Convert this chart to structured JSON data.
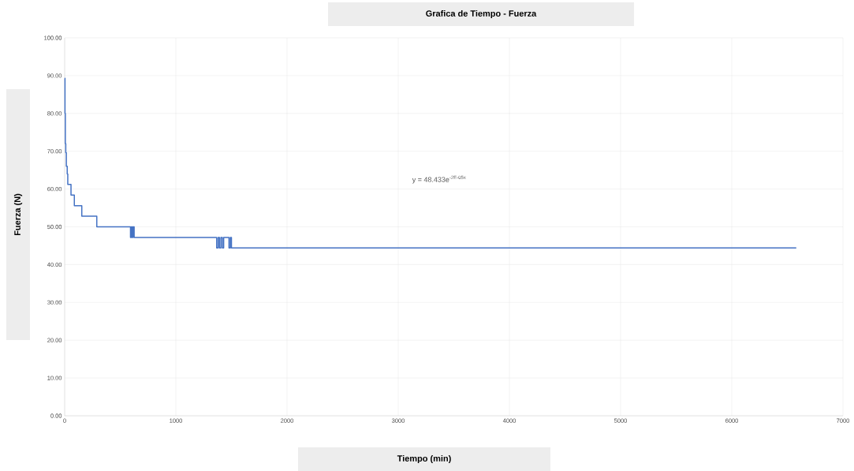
{
  "chart_data": {
    "type": "step",
    "title": "Grafica de Tiempo - Fuerza",
    "xlabel": "Tiempo (min)",
    "ylabel": "Fuerza (N)",
    "annotations": [
      "y = 48.433e$^{-2E-05x}$"
    ],
    "x": [
      0,
      3,
      6,
      10,
      15,
      23,
      28,
      57,
      87,
      154,
      289,
      592,
      600,
      608,
      615,
      625,
      1367,
      1380,
      1392,
      1405,
      1418,
      1430,
      1478,
      1490,
      1500,
      6580
    ],
    "values": [
      89.3,
      80,
      72,
      69.6,
      66,
      64,
      61.2,
      58.4,
      55.6,
      52.8,
      50.0,
      47.2,
      50.0,
      47.2,
      50.0,
      47.2,
      44.4,
      47.2,
      44.4,
      47.2,
      44.4,
      47.2,
      44.4,
      47.2,
      44.4,
      44.4
    ],
    "color": "#4472c4",
    "xlim": [
      0,
      7000
    ],
    "xticks": [
      0,
      1000,
      2000,
      3000,
      4000,
      5000,
      6000,
      7000
    ],
    "ylim": [
      0,
      100
    ],
    "yticks": [
      {
        "value": 0,
        "label": "0.00"
      },
      {
        "value": 10,
        "label": "10.00"
      },
      {
        "value": 20,
        "label": "20.00"
      },
      {
        "value": 30,
        "label": "30.00"
      },
      {
        "value": 40,
        "label": "40.00"
      },
      {
        "value": 50,
        "label": "50.00"
      },
      {
        "value": 60,
        "label": "60.00"
      },
      {
        "value": 70,
        "label": "70.00"
      },
      {
        "value": 80,
        "label": "80.00"
      },
      {
        "value": 90,
        "label": "90.00"
      },
      {
        "value": 100,
        "label": "100.00"
      }
    ],
    "grid": true,
    "line_style": "solid",
    "marker": "none"
  }
}
